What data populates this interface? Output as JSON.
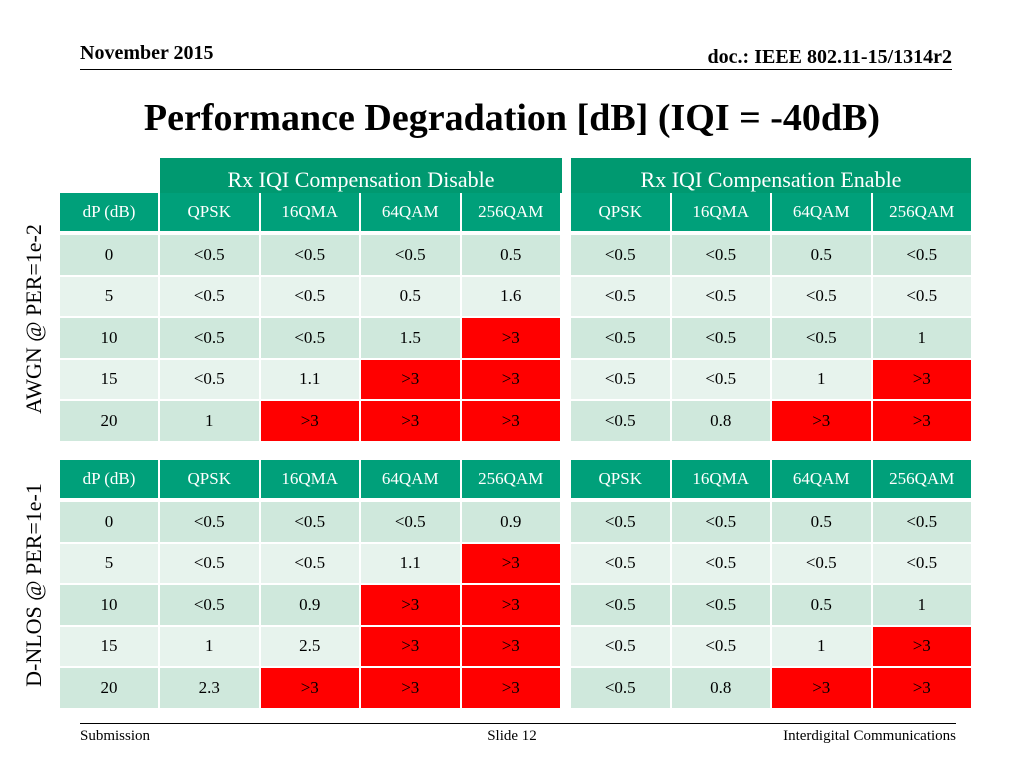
{
  "header": {
    "date": "November 2015",
    "doc": "doc.: IEEE 802.11-15/1314r2"
  },
  "title": "Performance Degradation [dB] (IQI = -40dB)",
  "group_headers": {
    "left": "Rx IQI Compensation Disable",
    "right": "Rx IQI Compensation Enable"
  },
  "columns": [
    "dP (dB)",
    "QPSK",
    "16QMA",
    "64QAM",
    "256QAM",
    "QPSK",
    "16QMA",
    "64QAM",
    "256QAM"
  ],
  "tables": [
    {
      "side_label": "AWGN @ PER=1e-2",
      "rows": [
        [
          "0",
          "<0.5",
          "<0.5",
          "<0.5",
          "0.5",
          "<0.5",
          "<0.5",
          "0.5",
          "<0.5"
        ],
        [
          "5",
          "<0.5",
          "<0.5",
          "0.5",
          "1.6",
          "<0.5",
          "<0.5",
          "<0.5",
          "<0.5"
        ],
        [
          "10",
          "<0.5",
          "<0.5",
          "1.5",
          ">3",
          "<0.5",
          "<0.5",
          "<0.5",
          "1"
        ],
        [
          "15",
          "<0.5",
          "1.1",
          ">3",
          ">3",
          "<0.5",
          "<0.5",
          "1",
          ">3"
        ],
        [
          "20",
          "1",
          ">3",
          ">3",
          ">3",
          "<0.5",
          "0.8",
          ">3",
          ">3"
        ]
      ]
    },
    {
      "side_label": "D-NLOS @ PER=1e-1",
      "rows": [
        [
          "0",
          "<0.5",
          "<0.5",
          "<0.5",
          "0.9",
          "<0.5",
          "<0.5",
          "0.5",
          "<0.5"
        ],
        [
          "5",
          "<0.5",
          "<0.5",
          "1.1",
          ">3",
          "<0.5",
          "<0.5",
          "<0.5",
          "<0.5"
        ],
        [
          "10",
          "<0.5",
          "0.9",
          ">3",
          ">3",
          "<0.5",
          "<0.5",
          "0.5",
          "1"
        ],
        [
          "15",
          "1",
          "2.5",
          ">3",
          ">3",
          "<0.5",
          "<0.5",
          "1",
          ">3"
        ],
        [
          "20",
          "2.3",
          ">3",
          ">3",
          ">3",
          "<0.5",
          "0.8",
          ">3",
          ">3"
        ]
      ]
    }
  ],
  "highlight_value": ">3",
  "colors": {
    "header_green": "#00a07a",
    "highlight_red": "#ff0000",
    "row_odd": "#cfe8dc",
    "row_even": "#e7f3ed"
  },
  "footer": {
    "left": "Submission",
    "center": "Slide 12",
    "right": "Interdigital Communications"
  }
}
